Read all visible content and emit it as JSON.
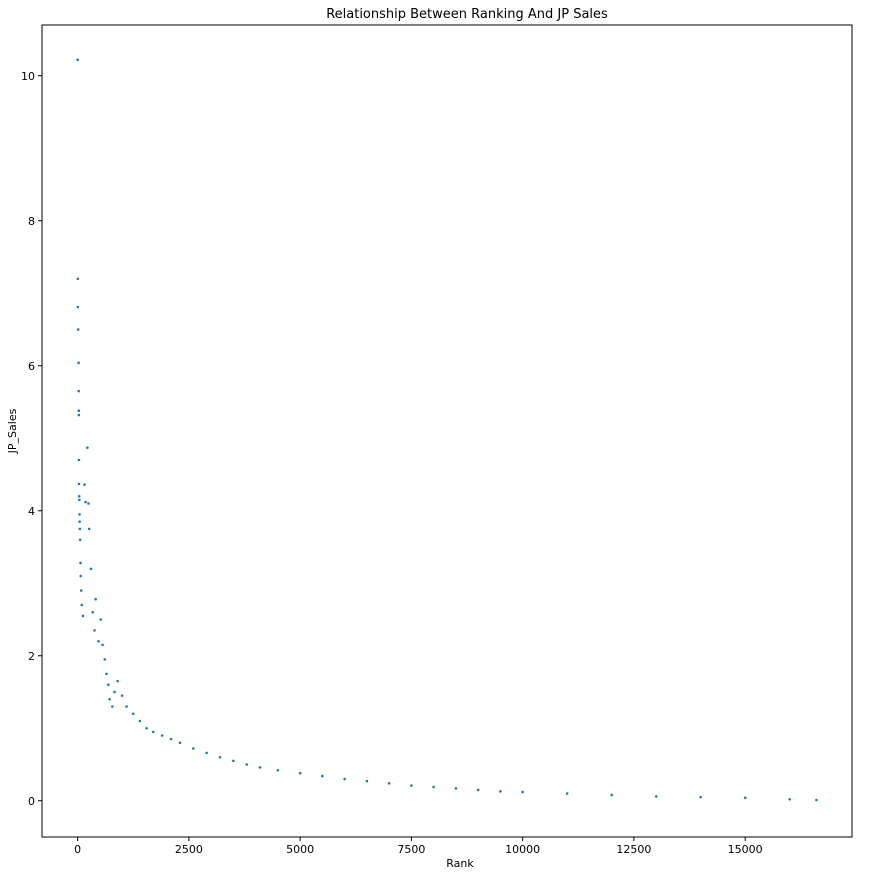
{
  "chart_data": {
    "type": "scatter",
    "title": "Relationship Between Ranking And JP Sales",
    "xlabel": "Rank",
    "ylabel": "JP_Sales",
    "xlim": [
      -800,
      17400
    ],
    "ylim": [
      -0.5,
      10.7
    ],
    "xticks": [
      0,
      2500,
      5000,
      7500,
      10000,
      12500,
      15000
    ],
    "yticks": [
      0,
      2,
      4,
      6,
      8,
      10
    ],
    "grid": false,
    "marker_color": "#1f77b4",
    "series": [
      {
        "x": [
          1,
          5,
          6,
          13,
          22,
          25,
          27,
          29,
          30,
          32,
          36,
          40,
          43,
          46,
          50,
          56,
          65,
          70,
          81,
          95,
          120,
          156,
          180,
          220,
          245,
          260,
          300,
          340,
          380,
          405,
          470,
          520,
          560,
          610,
          650,
          690,
          720,
          780,
          830,
          900,
          1000,
          1100,
          1250,
          1400,
          1550,
          1700,
          1900,
          2100,
          2300,
          2600,
          2900,
          3200,
          3500,
          3800,
          4100,
          4500,
          5000,
          5500,
          6000,
          6500,
          7000,
          7500,
          8000,
          8500,
          9000,
          9500,
          10000,
          11000,
          12000,
          13000,
          14000,
          15000,
          16000,
          16600
        ],
        "y": [
          10.22,
          7.2,
          6.81,
          6.5,
          6.04,
          5.65,
          5.38,
          5.32,
          4.7,
          4.37,
          4.2,
          4.15,
          3.95,
          3.85,
          3.75,
          3.6,
          3.28,
          3.1,
          2.9,
          2.7,
          2.55,
          4.36,
          4.12,
          4.87,
          4.1,
          3.75,
          3.2,
          2.6,
          2.35,
          2.78,
          2.2,
          2.5,
          2.15,
          1.95,
          1.75,
          1.6,
          1.4,
          1.3,
          1.5,
          1.65,
          1.45,
          1.3,
          1.2,
          1.1,
          1.0,
          0.95,
          0.9,
          0.85,
          0.8,
          0.72,
          0.66,
          0.6,
          0.55,
          0.5,
          0.46,
          0.42,
          0.38,
          0.34,
          0.3,
          0.27,
          0.24,
          0.21,
          0.19,
          0.17,
          0.15,
          0.13,
          0.12,
          0.1,
          0.08,
          0.06,
          0.05,
          0.04,
          0.02,
          0.01
        ]
      }
    ]
  }
}
